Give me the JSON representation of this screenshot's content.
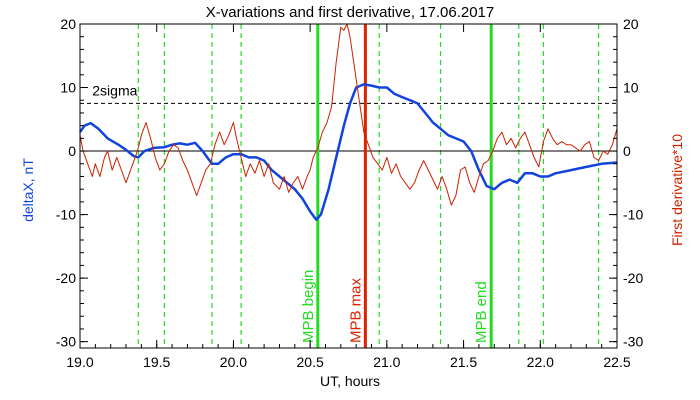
{
  "chart_data": {
    "type": "line",
    "title": "X-variations and first derivative, 17.06.2017",
    "xlabel": "UT, hours",
    "ylabel_left": "deltaX, nT",
    "ylabel_right": "First derivative*10",
    "xlim": [
      19.0,
      22.5
    ],
    "ylim": [
      -31,
      20
    ],
    "x_ticks": [
      19.0,
      19.5,
      20.0,
      20.5,
      21.0,
      21.5,
      22.0,
      22.5
    ],
    "x_tick_labels": [
      "19.0",
      "19.5",
      "20.0",
      "20.5",
      "21.0",
      "21.5",
      "22.0",
      "22.5"
    ],
    "y_ticks": [
      20,
      10,
      0,
      -10,
      -20,
      -30
    ],
    "y_tick_labels": [
      "20",
      "10",
      "0",
      "-10",
      "-20",
      "-30"
    ],
    "threshold": {
      "label": "2sigma",
      "value": 7.5
    },
    "zero_line": 0,
    "vertical_markers": [
      {
        "x": 20.55,
        "label": "MPB begin",
        "color": "#22dd22"
      },
      {
        "x": 20.86,
        "label": "MPB max",
        "color": "#dd2200"
      },
      {
        "x": 21.68,
        "label": "MPB end",
        "color": "#22dd22"
      }
    ],
    "dashed_verticals": [
      19.38,
      19.55,
      19.86,
      20.05,
      20.95,
      21.35,
      21.86,
      22.02,
      22.38
    ],
    "dashed_vertical_color": "#22dd22",
    "series": [
      {
        "color": "#1144dd",
        "points": [
          [
            19.0,
            3.0
          ],
          [
            19.03,
            4.0
          ],
          [
            19.07,
            4.4
          ],
          [
            19.12,
            3.5
          ],
          [
            19.18,
            2.0
          ],
          [
            19.25,
            1.0
          ],
          [
            19.3,
            0.2
          ],
          [
            19.35,
            -0.8
          ],
          [
            19.38,
            -1.0
          ],
          [
            19.42,
            0.0
          ],
          [
            19.48,
            0.5
          ],
          [
            19.55,
            0.6
          ],
          [
            19.6,
            1.0
          ],
          [
            19.65,
            1.2
          ],
          [
            19.7,
            1.0
          ],
          [
            19.75,
            1.3
          ],
          [
            19.8,
            0.0
          ],
          [
            19.86,
            -2.0
          ],
          [
            19.9,
            -2.0
          ],
          [
            19.95,
            -1.0
          ],
          [
            20.0,
            -0.5
          ],
          [
            20.05,
            -0.5
          ],
          [
            20.1,
            -1.0
          ],
          [
            20.15,
            -1.0
          ],
          [
            20.2,
            -1.5
          ],
          [
            20.25,
            -3.0
          ],
          [
            20.3,
            -4.0
          ],
          [
            20.35,
            -5.0
          ],
          [
            20.4,
            -6.0
          ],
          [
            20.45,
            -7.5
          ],
          [
            20.5,
            -9.5
          ],
          [
            20.54,
            -10.8
          ],
          [
            20.57,
            -10.0
          ],
          [
            20.62,
            -6.0
          ],
          [
            20.67,
            -1.0
          ],
          [
            20.72,
            4.0
          ],
          [
            20.76,
            7.5
          ],
          [
            20.8,
            10.0
          ],
          [
            20.85,
            10.5
          ],
          [
            20.9,
            10.3
          ],
          [
            20.95,
            10.0
          ],
          [
            21.0,
            10.0
          ],
          [
            21.05,
            9.0
          ],
          [
            21.1,
            8.5
          ],
          [
            21.15,
            8.0
          ],
          [
            21.2,
            7.5
          ],
          [
            21.25,
            6.0
          ],
          [
            21.3,
            4.5
          ],
          [
            21.35,
            3.5
          ],
          [
            21.4,
            2.5
          ],
          [
            21.45,
            2.0
          ],
          [
            21.5,
            1.5
          ],
          [
            21.55,
            0.0
          ],
          [
            21.6,
            -3.0
          ],
          [
            21.65,
            -5.5
          ],
          [
            21.7,
            -6.0
          ],
          [
            21.75,
            -5.0
          ],
          [
            21.8,
            -4.5
          ],
          [
            21.85,
            -5.0
          ],
          [
            21.9,
            -3.5
          ],
          [
            21.95,
            -3.5
          ],
          [
            22.0,
            -4.0
          ],
          [
            22.05,
            -4.0
          ],
          [
            22.1,
            -3.5
          ],
          [
            22.2,
            -3.0
          ],
          [
            22.3,
            -2.5
          ],
          [
            22.4,
            -2.0
          ],
          [
            22.5,
            -1.8
          ]
        ]
      },
      {
        "color": "#cc2200",
        "points": [
          [
            19.0,
            2.5
          ],
          [
            19.02,
            0.0
          ],
          [
            19.05,
            -2.0
          ],
          [
            19.08,
            -4.0
          ],
          [
            19.1,
            -2.0
          ],
          [
            19.13,
            -4.0
          ],
          [
            19.16,
            -1.0
          ],
          [
            19.18,
            0.0
          ],
          [
            19.21,
            -3.0
          ],
          [
            19.24,
            -1.0
          ],
          [
            19.27,
            -3.0
          ],
          [
            19.3,
            -5.0
          ],
          [
            19.33,
            -3.0
          ],
          [
            19.36,
            -1.0
          ],
          [
            19.38,
            0.5
          ],
          [
            19.4,
            2.5
          ],
          [
            19.43,
            4.5
          ],
          [
            19.46,
            2.0
          ],
          [
            19.49,
            -1.0
          ],
          [
            19.52,
            -3.0
          ],
          [
            19.55,
            -2.0
          ],
          [
            19.58,
            0.0
          ],
          [
            19.61,
            1.0
          ],
          [
            19.64,
            0.5
          ],
          [
            19.67,
            -1.5
          ],
          [
            19.7,
            -3.0
          ],
          [
            19.73,
            -5.0
          ],
          [
            19.76,
            -7.0
          ],
          [
            19.79,
            -5.0
          ],
          [
            19.82,
            -3.0
          ],
          [
            19.85,
            -2.0
          ],
          [
            19.88,
            1.0
          ],
          [
            19.91,
            3.0
          ],
          [
            19.94,
            1.0
          ],
          [
            19.97,
            2.5
          ],
          [
            20.0,
            4.5
          ],
          [
            20.02,
            2.0
          ],
          [
            20.05,
            -1.0
          ],
          [
            20.08,
            -4.0
          ],
          [
            20.11,
            -2.0
          ],
          [
            20.14,
            -3.5
          ],
          [
            20.17,
            -1.5
          ],
          [
            20.2,
            -4.0
          ],
          [
            20.23,
            -2.0
          ],
          [
            20.26,
            -5.0
          ],
          [
            20.3,
            -6.0
          ],
          [
            20.33,
            -4.0
          ],
          [
            20.36,
            -6.5
          ],
          [
            20.39,
            -5.0
          ],
          [
            20.42,
            -4.0
          ],
          [
            20.45,
            -6.0
          ],
          [
            20.48,
            -4.0
          ],
          [
            20.5,
            -3.0
          ],
          [
            20.52,
            -1.0
          ],
          [
            20.55,
            0.5
          ],
          [
            20.58,
            3.0
          ],
          [
            20.61,
            4.5
          ],
          [
            20.64,
            7.0
          ],
          [
            20.67,
            14.0
          ],
          [
            20.7,
            19.5
          ],
          [
            20.72,
            19.0
          ],
          [
            20.74,
            20.0
          ],
          [
            20.76,
            18.0
          ],
          [
            20.79,
            13.0
          ],
          [
            20.82,
            8.0
          ],
          [
            20.85,
            3.0
          ],
          [
            20.88,
            1.0
          ],
          [
            20.91,
            -1.0
          ],
          [
            20.94,
            -2.0
          ],
          [
            20.97,
            -3.0
          ],
          [
            21.0,
            -1.0
          ],
          [
            21.03,
            -3.5
          ],
          [
            21.06,
            -2.0
          ],
          [
            21.09,
            -4.0
          ],
          [
            21.12,
            -5.0
          ],
          [
            21.15,
            -6.0
          ],
          [
            21.18,
            -5.0
          ],
          [
            21.21,
            -3.0
          ],
          [
            21.24,
            -1.5
          ],
          [
            21.27,
            -3.0
          ],
          [
            21.3,
            -4.5
          ],
          [
            21.33,
            -6.0
          ],
          [
            21.36,
            -4.0
          ],
          [
            21.39,
            -6.0
          ],
          [
            21.42,
            -8.5
          ],
          [
            21.45,
            -7.0
          ],
          [
            21.48,
            -3.0
          ],
          [
            21.51,
            -2.5
          ],
          [
            21.54,
            -5.0
          ],
          [
            21.57,
            -6.5
          ],
          [
            21.6,
            -4.0
          ],
          [
            21.63,
            -2.0
          ],
          [
            21.66,
            -1.5
          ],
          [
            21.69,
            0.0
          ],
          [
            21.72,
            2.0
          ],
          [
            21.75,
            3.0
          ],
          [
            21.78,
            1.0
          ],
          [
            21.81,
            2.0
          ],
          [
            21.84,
            0.5
          ],
          [
            21.87,
            2.0
          ],
          [
            21.9,
            3.0
          ],
          [
            21.93,
            1.0
          ],
          [
            21.96,
            -1.0
          ],
          [
            21.99,
            -2.5
          ],
          [
            22.02,
            1.5
          ],
          [
            22.05,
            3.5
          ],
          [
            22.08,
            2.0
          ],
          [
            22.11,
            1.0
          ],
          [
            22.14,
            1.5
          ],
          [
            22.17,
            1.0
          ],
          [
            22.2,
            1.0
          ],
          [
            22.23,
            0.5
          ],
          [
            22.26,
            0.0
          ],
          [
            22.29,
            1.0
          ],
          [
            22.32,
            1.5
          ],
          [
            22.35,
            -1.0
          ],
          [
            22.38,
            -1.5
          ],
          [
            22.41,
            0.0
          ],
          [
            22.44,
            -0.5
          ],
          [
            22.47,
            1.0
          ],
          [
            22.5,
            3.5
          ]
        ]
      }
    ]
  }
}
